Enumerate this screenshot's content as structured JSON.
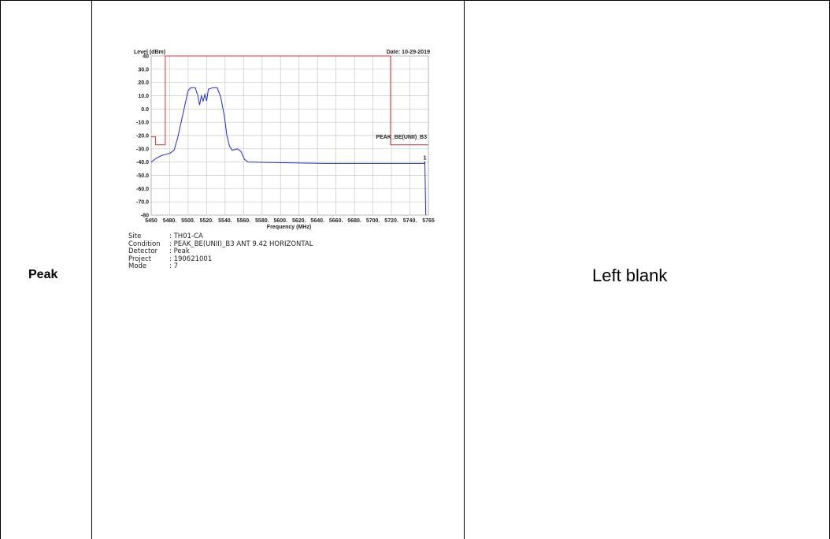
{
  "row_label": "Peak",
  "right_cell_text": "Left blank",
  "chart_data": {
    "type": "line",
    "y_axis_label": "Level (dBm)",
    "x_axis_label": "Frequency (MHz)",
    "date_text": "Date: 10-29-2019",
    "xlim": [
      5450,
      5765
    ],
    "ylim": [
      -80,
      40
    ],
    "y_ticks": [
      "40",
      "30.0",
      "20.0",
      "10.0",
      "0.0",
      "-10.0",
      "-20.0",
      "-30.0",
      "-40.0",
      "-50.0",
      "-60.0",
      "-70.0",
      "-80"
    ],
    "x_ticks": [
      "5450",
      "5480.",
      "5500.",
      "5520.",
      "5540.",
      "5560.",
      "5580.",
      "5600.",
      "5620.",
      "5640.",
      "5660.",
      "5680.",
      "5700.",
      "5720.",
      "5740.",
      "5765"
    ],
    "grid": true,
    "limit_line": {
      "name": "PEAK_BE(UNII)_B3",
      "color": "#e03030",
      "points": [
        [
          5450,
          -21
        ],
        [
          5455,
          -21
        ],
        [
          5455,
          -27
        ],
        [
          5466,
          -27
        ],
        [
          5466,
          40
        ],
        [
          5722,
          40
        ],
        [
          5722,
          -27
        ],
        [
          5765,
          -27
        ]
      ]
    },
    "series": [
      {
        "color": "#1a2fd0",
        "points": [
          [
            5450,
            -40
          ],
          [
            5456,
            -37
          ],
          [
            5462,
            -35
          ],
          [
            5468,
            -34
          ],
          [
            5472,
            -33
          ],
          [
            5476,
            -31
          ],
          [
            5480,
            -22
          ],
          [
            5484,
            -10
          ],
          [
            5488,
            2
          ],
          [
            5492,
            14
          ],
          [
            5495,
            16
          ],
          [
            5500,
            16
          ],
          [
            5503,
            10
          ],
          [
            5505,
            3
          ],
          [
            5507,
            10
          ],
          [
            5509,
            6
          ],
          [
            5511,
            11
          ],
          [
            5513,
            6
          ],
          [
            5515,
            15
          ],
          [
            5520,
            16
          ],
          [
            5525,
            16
          ],
          [
            5529,
            9
          ],
          [
            5533,
            -5
          ],
          [
            5536,
            -20
          ],
          [
            5539,
            -28
          ],
          [
            5542,
            -31
          ],
          [
            5548,
            -30
          ],
          [
            5552,
            -32
          ],
          [
            5556,
            -38
          ],
          [
            5560,
            -40
          ],
          [
            5600,
            -40.5
          ],
          [
            5650,
            -41
          ],
          [
            5700,
            -41
          ],
          [
            5760,
            -41
          ],
          [
            5761,
            -40
          ],
          [
            5762,
            -80
          ]
        ]
      }
    ],
    "marker": "1",
    "marker_at": [
      5762,
      -38
    ]
  },
  "meta": {
    "site_key": "Site",
    "site_val": ": TH01-CA",
    "condition_key": "Condition",
    "condition_val": ": PEAK_BE(UNII)_B3 ANT 9.42 HORIZONTAL",
    "detector_key": "Detector",
    "detector_val": ": Peak",
    "project_key": "Project",
    "project_val": ": 190621001",
    "mode_key": "Mode",
    "mode_val": ": 7"
  }
}
